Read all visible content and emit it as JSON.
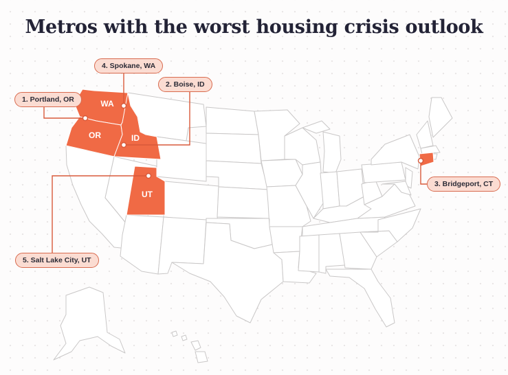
{
  "title": "Metros with the worst housing crisis outlook",
  "colors": {
    "highlight": "#f06a45",
    "highlight_stroke": "#ffffff",
    "callout_fill": "#fbdcd2",
    "callout_border": "#d86a4e",
    "leader_line": "#d8593a",
    "state_fill": "#ffffff",
    "state_border": "#c9c7c7",
    "title": "#232336",
    "background_dot": "#e9e6e6"
  },
  "callouts": [
    {
      "id": "portland",
      "label": "1. Portland, OR"
    },
    {
      "id": "boise",
      "label": "2. Boise, ID"
    },
    {
      "id": "bridgeport",
      "label": "3. Bridgeport, CT"
    },
    {
      "id": "spokane",
      "label": "4. Spokane, WA"
    },
    {
      "id": "saltlake",
      "label": "5. Salt Lake City, UT"
    }
  ],
  "highlighted_states": [
    {
      "abbr": "WA"
    },
    {
      "abbr": "OR"
    },
    {
      "abbr": "ID"
    },
    {
      "abbr": "UT"
    },
    {
      "abbr": "CT"
    }
  ]
}
